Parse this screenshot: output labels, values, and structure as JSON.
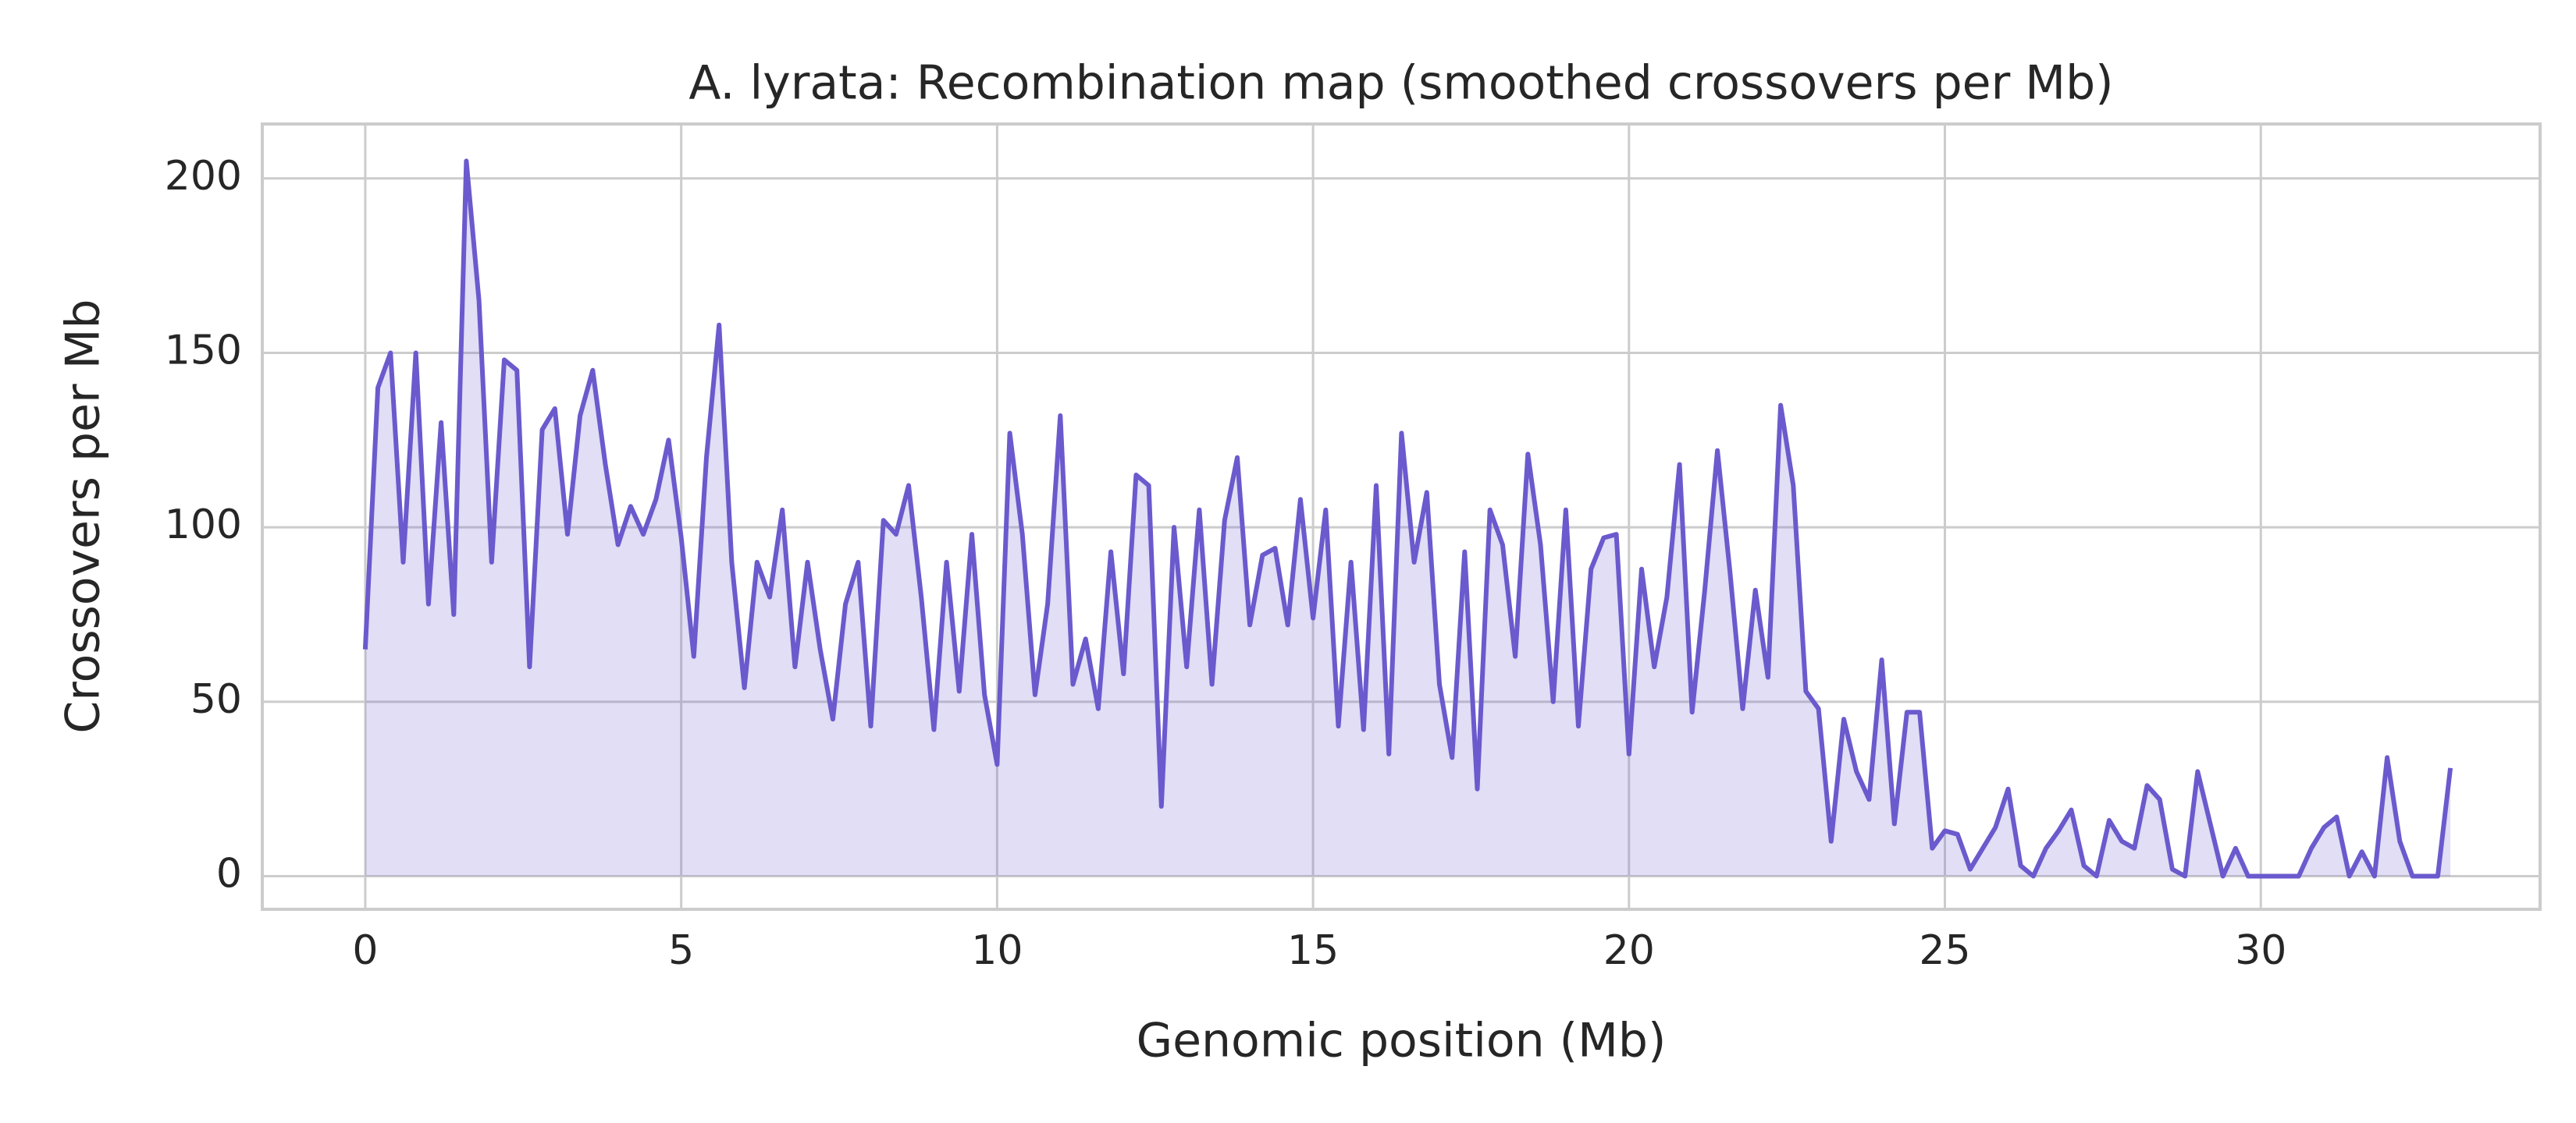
{
  "chart_data": {
    "type": "line",
    "title": "A. lyrata: Recombination map (smoothed crossovers per Mb)",
    "xlabel": "Genomic position (Mb)",
    "ylabel": "Crossovers per Mb",
    "color": "#6a5acd",
    "area_fill": true,
    "grid": true,
    "xlim": [
      -1.63,
      34.42
    ],
    "ylim": [
      -9.5,
      215.6
    ],
    "xticks": [
      0,
      5,
      10,
      15,
      20,
      25,
      30
    ],
    "yticks": [
      0,
      50,
      100,
      150,
      200
    ],
    "x": [
      0.0,
      0.2,
      0.4,
      0.6,
      0.8,
      1.0,
      1.2,
      1.4,
      1.6,
      1.8,
      2.0,
      2.2,
      2.4,
      2.6,
      2.8,
      3.0,
      3.2,
      3.4,
      3.6,
      3.8,
      4.0,
      4.2,
      4.4,
      4.6,
      4.8,
      5.0,
      5.2,
      5.4,
      5.6,
      5.8,
      6.0,
      6.2,
      6.4,
      6.6,
      6.8,
      7.0,
      7.2,
      7.4,
      7.6,
      7.8,
      8.0,
      8.2,
      8.4,
      8.6,
      8.8,
      9.0,
      9.2,
      9.4,
      9.6,
      9.8,
      10.0,
      10.2,
      10.4,
      10.6,
      10.8,
      11.0,
      11.2,
      11.4,
      11.6,
      11.8,
      12.0,
      12.2,
      12.4,
      12.6,
      12.8,
      13.0,
      13.2,
      13.4,
      13.6,
      13.8,
      14.0,
      14.2,
      14.4,
      14.6,
      14.8,
      15.0,
      15.2,
      15.4,
      15.6,
      15.8,
      16.0,
      16.2,
      16.4,
      16.6,
      16.8,
      17.0,
      17.2,
      17.4,
      17.6,
      17.8,
      18.0,
      18.2,
      18.4,
      18.6,
      18.8,
      19.0,
      19.2,
      19.4,
      19.6,
      19.8,
      20.0,
      20.2,
      20.4,
      20.6,
      20.8,
      21.0,
      21.2,
      21.4,
      21.6,
      21.8,
      22.0,
      22.2,
      22.4,
      22.6,
      22.8,
      23.0,
      23.2,
      23.4,
      23.6,
      23.8,
      24.0,
      24.2,
      24.4,
      24.6,
      24.8,
      25.0,
      25.2,
      25.4,
      25.6,
      25.8,
      26.0,
      26.2,
      26.4,
      26.6,
      26.8,
      27.0,
      27.2,
      27.4,
      27.6,
      27.8,
      28.0,
      28.2,
      28.4,
      28.6,
      28.8,
      29.0,
      29.2,
      29.4,
      29.6,
      29.8,
      30.0,
      30.2,
      30.4,
      30.6,
      30.8,
      31.0,
      31.2,
      31.4,
      31.6,
      31.8,
      32.0,
      32.2,
      32.4,
      32.6,
      32.8,
      33.0
    ],
    "values": [
      65,
      140,
      150,
      90,
      150,
      78,
      130,
      75,
      205,
      165,
      90,
      148,
      145,
      60,
      128,
      134,
      98,
      132,
      145,
      118,
      95,
      106,
      98,
      108,
      125,
      97,
      63,
      120,
      158,
      90,
      54,
      90,
      80,
      105,
      60,
      90,
      65,
      45,
      78,
      90,
      43,
      102,
      98,
      112,
      80,
      42,
      90,
      53,
      98,
      52,
      32,
      127,
      98,
      52,
      78,
      132,
      55,
      68,
      48,
      93,
      58,
      115,
      112,
      20,
      100,
      60,
      105,
      55,
      102,
      120,
      72,
      92,
      94,
      72,
      108,
      74,
      105,
      43,
      90,
      42,
      112,
      35,
      127,
      90,
      110,
      55,
      34,
      93,
      25,
      105,
      95,
      63,
      121,
      95,
      50,
      105,
      43,
      88,
      97,
      98,
      35,
      88,
      60,
      80,
      118,
      47,
      82,
      122,
      87,
      48,
      82,
      57,
      135,
      112,
      53,
      48,
      10,
      45,
      30,
      22,
      62,
      15,
      47,
      47,
      8,
      13,
      12,
      2,
      8,
      14,
      25,
      3,
      0,
      8,
      13,
      19,
      3,
      0,
      16,
      10,
      8,
      26,
      22,
      2,
      0,
      30,
      15,
      0,
      8,
      0,
      0,
      0,
      0,
      0,
      8,
      14,
      17,
      0,
      7,
      0,
      34,
      10,
      0,
      0,
      0,
      31
    ]
  }
}
